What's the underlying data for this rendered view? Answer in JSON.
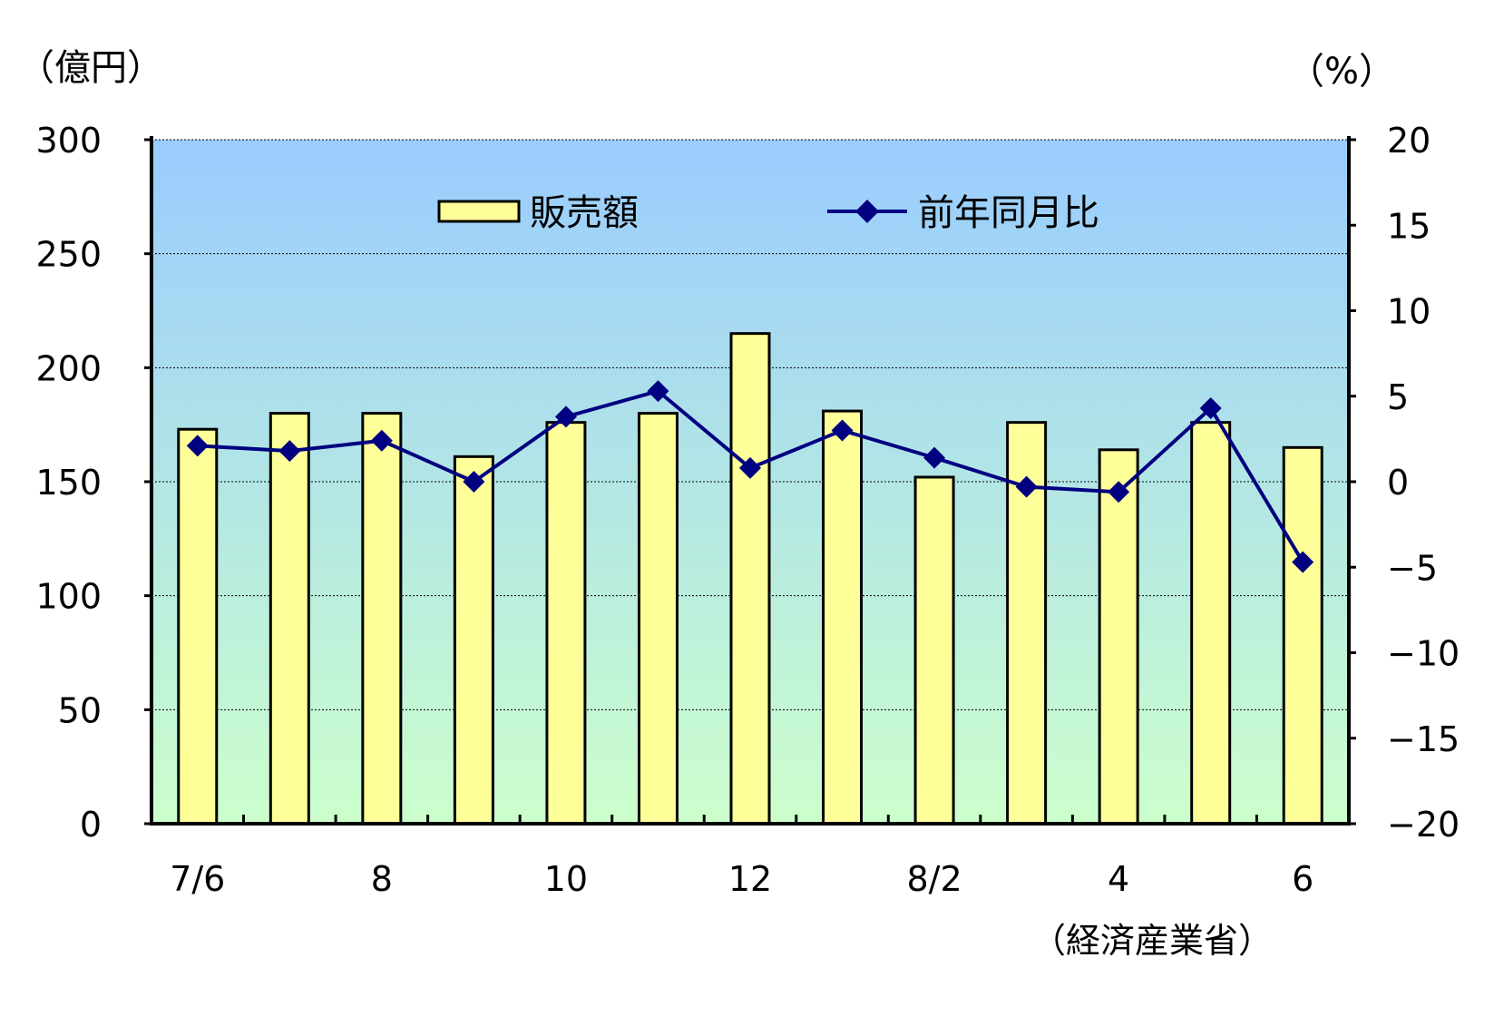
{
  "chart_data": {
    "type": "bar",
    "categories": [
      "7/6",
      "",
      "8",
      "",
      "10",
      "",
      "12",
      "",
      "8/2",
      "",
      "4",
      "",
      "6"
    ],
    "x_tick_labels": [
      "7/6",
      "8",
      "10",
      "12",
      "8/2",
      "4",
      "6"
    ],
    "series": [
      {
        "name": "販売額",
        "type": "bar",
        "axis": "left",
        "values": [
          173,
          180,
          180,
          161,
          176,
          180,
          215,
          181,
          152,
          176,
          164,
          176,
          165
        ]
      },
      {
        "name": "前年同月比",
        "type": "line",
        "axis": "right",
        "values": [
          2.1,
          1.8,
          2.4,
          0.0,
          3.8,
          5.3,
          0.8,
          3.0,
          1.4,
          -0.3,
          -0.6,
          4.3,
          -4.7
        ]
      }
    ],
    "left_axis": {
      "unit_label": "（億円）",
      "ylim": [
        0,
        300
      ],
      "ticks": [
        "0",
        "50",
        "100",
        "150",
        "200",
        "250",
        "300"
      ]
    },
    "right_axis": {
      "unit_label": "（%）",
      "ylim": [
        -20,
        20
      ],
      "ticks": [
        "−20",
        "−15",
        "−10",
        "−5",
        "0",
        "5",
        "10",
        "15",
        "20"
      ]
    },
    "grid": true,
    "legend": "top",
    "source": "（経済産業省）",
    "colors": {
      "bar_fill": "#FFFF99",
      "bar_stroke": "#000000",
      "line": "#000080",
      "bg_top": "#99CCFF",
      "bg_bottom": "#CCFFCC"
    }
  }
}
